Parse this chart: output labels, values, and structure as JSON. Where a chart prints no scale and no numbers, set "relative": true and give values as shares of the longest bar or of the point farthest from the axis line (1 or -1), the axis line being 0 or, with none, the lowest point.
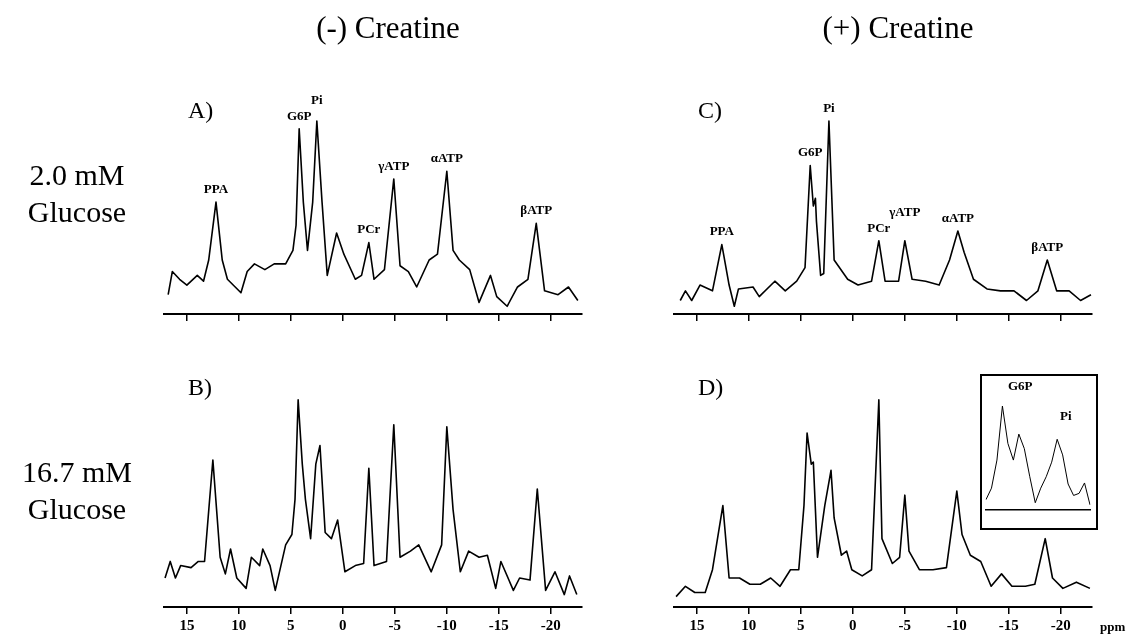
{
  "chart_data": [
    {
      "type": "line",
      "title": "(-) Creatine",
      "ylabel": "2.0 mM Glucose",
      "relative": true,
      "xlim": [
        17.2,
        -23
      ],
      "xticks": [
        {
          "value": 15,
          "label": null
        },
        {
          "value": 10,
          "label": null
        },
        {
          "value": 5,
          "label": null
        },
        {
          "value": 0,
          "label": null
        },
        {
          "value": -5,
          "label": null
        },
        {
          "value": -10,
          "label": null
        },
        {
          "value": -15,
          "label": null
        },
        {
          "value": -20,
          "label": null
        }
      ],
      "tick_labels": false,
      "x": [
        16.8,
        16.4,
        15.7,
        15.0,
        14.0,
        13.4,
        12.9,
        12.2,
        11.6,
        11.1,
        9.8,
        9.2,
        8.5,
        7.5,
        6.6,
        5.5,
        4.8,
        4.5,
        4.2,
        3.8,
        3.4,
        2.9,
        2.5,
        2.0,
        1.5,
        0.6,
        -0.1,
        -1.2,
        -1.8,
        -2.5,
        -3.0,
        -4.0,
        -4.9,
        -5.5,
        -6.3,
        -7.1,
        -8.3,
        -9.1,
        -10.0,
        -10.6,
        -11.2,
        -12.2,
        -13.1,
        -14.2,
        -14.8,
        -15.8,
        -16.8,
        -17.8,
        -18.6,
        -19.4,
        -20.7,
        -21.7,
        -22.6
      ],
      "series": [
        {
          "color": "#000000",
          "values": [
            0.1,
            0.22,
            0.18,
            0.15,
            0.2,
            0.17,
            0.28,
            0.58,
            0.28,
            0.18,
            0.11,
            0.22,
            0.26,
            0.23,
            0.26,
            0.26,
            0.33,
            0.46,
            0.96,
            0.58,
            0.33,
            0.58,
            1,
            0.58,
            0.2,
            0.42,
            0.31,
            0.18,
            0.2,
            0.37,
            0.18,
            0.23,
            0.7,
            0.25,
            0.22,
            0.14,
            0.28,
            0.31,
            0.74,
            0.33,
            0.28,
            0.23,
            0.06,
            0.2,
            0.09,
            0.04,
            0.14,
            0.18,
            0.47,
            0.12,
            0.1,
            0.14,
            0.07
          ]
        }
      ],
      "annotations": [
        "A)",
        {
          "text": "PPA",
          "x": 12.2,
          "y": 0.58
        },
        {
          "text": "G6P",
          "x": 4.2,
          "y": 0.96
        },
        {
          "text": "Pi",
          "x": 2.5,
          "y": 1
        },
        {
          "text": "PCr",
          "x": -2.5,
          "y": 0.37
        },
        {
          "text": "γATP",
          "x": -4.9,
          "y": 0.7
        },
        {
          "text": "αATP",
          "x": -10.0,
          "y": 0.74
        },
        {
          "text": "βATP",
          "x": -18.6,
          "y": 0.47
        }
      ]
    },
    {
      "type": "line",
      "title": "(+) Creatine",
      "relative": true,
      "xlim": [
        17.2,
        -23
      ],
      "xticks": [
        {
          "value": 15,
          "label": null
        },
        {
          "value": 10,
          "label": null
        },
        {
          "value": 5,
          "label": null
        },
        {
          "value": 0,
          "label": null
        },
        {
          "value": -5,
          "label": null
        },
        {
          "value": -10,
          "label": null
        },
        {
          "value": -15,
          "label": null
        },
        {
          "value": -20,
          "label": null
        }
      ],
      "tick_labels": false,
      "x": [
        16.6,
        16.1,
        15.5,
        14.7,
        13.5,
        12.6,
        11.9,
        11.4,
        11.0,
        9.6,
        9.0,
        7.5,
        6.5,
        5.4,
        4.6,
        4.1,
        3.8,
        3.6,
        3.5,
        3.1,
        2.8,
        2.3,
        1.8,
        0.5,
        -0.5,
        -1.8,
        -2.5,
        -3.1,
        -4.4,
        -5.0,
        -5.7,
        -7.0,
        -8.3,
        -9.3,
        -10.1,
        -10.7,
        -11.6,
        -12.9,
        -14.2,
        -15.5,
        -16.7,
        -17.8,
        -18.7,
        -19.6,
        -20.8,
        -21.9,
        -22.9
      ],
      "series": [
        {
          "color": "#000000",
          "values": [
            0.07,
            0.12,
            0.07,
            0.15,
            0.12,
            0.36,
            0.15,
            0.04,
            0.13,
            0.14,
            0.09,
            0.17,
            0.12,
            0.17,
            0.24,
            0.77,
            0.56,
            0.6,
            0.48,
            0.2,
            0.21,
            1,
            0.28,
            0.18,
            0.15,
            0.17,
            0.38,
            0.17,
            0.17,
            0.38,
            0.18,
            0.17,
            0.15,
            0.28,
            0.43,
            0.32,
            0.18,
            0.13,
            0.12,
            0.12,
            0.07,
            0.12,
            0.28,
            0.12,
            0.12,
            0.07,
            0.1
          ]
        }
      ],
      "annotations": [
        "C)",
        {
          "text": "PPA",
          "x": 12.6,
          "y": 0.36
        },
        {
          "text": "G6P",
          "x": 4.1,
          "y": 0.77
        },
        {
          "text": "Pi",
          "x": 2.3,
          "y": 1
        },
        {
          "text": "PCr",
          "x": -2.5,
          "y": 0.38
        },
        {
          "text": "γATP",
          "x": -5.0,
          "y": 0.38
        },
        {
          "text": "αATP",
          "x": -10.1,
          "y": 0.43
        },
        {
          "text": "βATP",
          "x": -18.7,
          "y": 0.28
        }
      ]
    },
    {
      "type": "line",
      "ylabel": "16.7 mM Glucose",
      "relative": true,
      "xlim": [
        17.2,
        -23
      ],
      "xticks": [
        15,
        10,
        5,
        0,
        -5,
        -10,
        -15,
        -20
      ],
      "tick_labels": "x",
      "x": [
        17.1,
        16.6,
        16.1,
        15.6,
        14.6,
        13.9,
        13.3,
        12.5,
        11.8,
        11.3,
        10.8,
        10.2,
        9.3,
        8.8,
        8.0,
        7.7,
        7.0,
        6.5,
        5.5,
        4.9,
        4.6,
        4.3,
        3.9,
        3.6,
        3.1,
        2.6,
        2.2,
        1.7,
        1.1,
        0.5,
        -0.2,
        -1.2,
        -2.0,
        -2.5,
        -3.0,
        -4.2,
        -4.9,
        -5.5,
        -6.5,
        -7.3,
        -8.5,
        -9.5,
        -10.0,
        -10.6,
        -11.3,
        -12.1,
        -13.1,
        -13.9,
        -14.7,
        -15.2,
        -16.4,
        -17.0,
        -18.0,
        -18.7,
        -19.5,
        -20.4,
        -21.3,
        -21.8,
        -22.5
      ],
      "series": [
        {
          "color": "#000000",
          "values": [
            0.14,
            0.22,
            0.14,
            0.2,
            0.19,
            0.22,
            0.22,
            0.71,
            0.24,
            0.16,
            0.28,
            0.14,
            0.09,
            0.24,
            0.2,
            0.28,
            0.2,
            0.08,
            0.3,
            0.35,
            0.52,
            1,
            0.69,
            0.52,
            0.33,
            0.69,
            0.78,
            0.36,
            0.33,
            0.42,
            0.17,
            0.2,
            0.21,
            0.67,
            0.2,
            0.22,
            0.88,
            0.24,
            0.27,
            0.3,
            0.17,
            0.3,
            0.87,
            0.47,
            0.17,
            0.27,
            0.24,
            0.25,
            0.09,
            0.22,
            0.08,
            0.14,
            0.13,
            0.57,
            0.08,
            0.17,
            0.06,
            0.15,
            0.06
          ]
        }
      ],
      "annotations": [
        "B)"
      ]
    },
    {
      "type": "line",
      "xlabel": "ppm",
      "relative": true,
      "xlim": [
        17.2,
        -23
      ],
      "xticks": [
        15,
        10,
        5,
        0,
        -5,
        -10,
        -15,
        -20
      ],
      "tick_labels": "x",
      "x": [
        17.0,
        16.1,
        15.2,
        14.2,
        13.5,
        12.5,
        11.9,
        10.9,
        9.9,
        8.9,
        7.9,
        7.0,
        6.0,
        5.2,
        4.7,
        4.4,
        4.0,
        3.8,
        3.4,
        2.7,
        2.1,
        1.8,
        1.1,
        0.6,
        0.1,
        -0.9,
        -1.8,
        -2.5,
        -2.8,
        -3.8,
        -4.5,
        -5.0,
        -5.4,
        -6.4,
        -7.7,
        -9.0,
        -10.0,
        -10.5,
        -11.3,
        -12.3,
        -13.3,
        -14.3,
        -15.3,
        -16.6,
        -17.5,
        -18.5,
        -19.2,
        -20.2,
        -21.5,
        -22.8
      ],
      "series": [
        {
          "color": "#000000",
          "values": [
            0.05,
            0.1,
            0.07,
            0.07,
            0.18,
            0.49,
            0.14,
            0.14,
            0.11,
            0.11,
            0.14,
            0.1,
            0.18,
            0.18,
            0.49,
            0.84,
            0.69,
            0.7,
            0.24,
            0.49,
            0.66,
            0.43,
            0.25,
            0.27,
            0.18,
            0.15,
            0.18,
            1,
            0.33,
            0.21,
            0.24,
            0.54,
            0.27,
            0.18,
            0.18,
            0.19,
            0.56,
            0.35,
            0.25,
            0.22,
            0.1,
            0.16,
            0.1,
            0.1,
            0.11,
            0.33,
            0.14,
            0.09,
            0.12,
            0.09
          ]
        }
      ],
      "annotations": [
        "D)"
      ]
    },
    {
      "type": "line",
      "relative": true,
      "tick_labels": false,
      "categories": [
        null,
        null,
        null,
        null,
        null,
        null,
        null,
        null,
        null,
        null,
        null,
        null,
        null,
        null,
        null,
        null,
        null,
        null,
        null,
        null
      ],
      "series": [
        {
          "color": "#000000",
          "values": [
            0.1,
            0.21,
            0.48,
            1,
            0.64,
            0.48,
            0.73,
            0.59,
            0.32,
            0.07,
            0.21,
            0.32,
            0.46,
            0.68,
            0.53,
            0.25,
            0.14,
            0.16,
            0.26,
            0.05
          ]
        }
      ],
      "annotations": [
        "G6P",
        "Pi"
      ]
    }
  ]
}
